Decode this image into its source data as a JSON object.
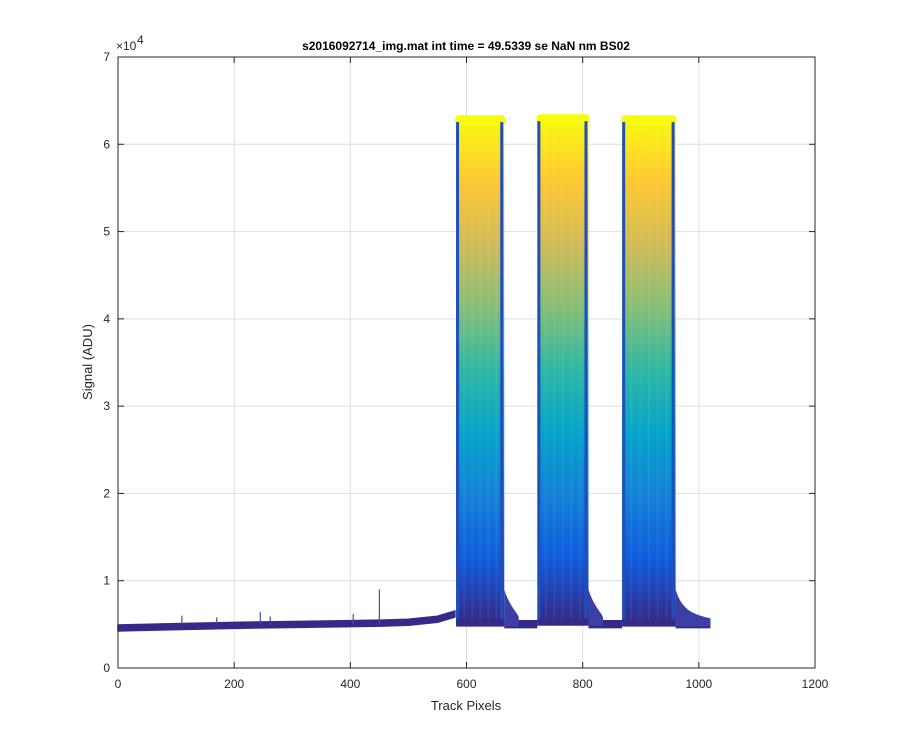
{
  "chart_data": {
    "type": "line",
    "title": "s2016092714_img.mat int time = 49.5339 se  NaN nm BS02",
    "xlabel": "Track Pixels",
    "ylabel": "Signal (ADU)",
    "xlim": [
      0,
      1200
    ],
    "ylim": [
      0,
      70000
    ],
    "x_ticks": [
      "0",
      "200",
      "400",
      "600",
      "800",
      "1000",
      "1200"
    ],
    "x_tick_values": [
      0,
      200,
      400,
      600,
      800,
      1000,
      1200
    ],
    "y_ticks": [
      "0",
      "1",
      "2",
      "3",
      "4",
      "5",
      "6",
      "7"
    ],
    "y_tick_values": [
      0,
      10000,
      20000,
      30000,
      40000,
      50000,
      60000,
      70000
    ],
    "y_exponent_base": "×10",
    "y_exponent_power": "4",
    "grid": true,
    "colormap": [
      "#352a87",
      "#0f5cdd",
      "#1481d6",
      "#06a4ca",
      "#2eb7a4",
      "#87bf77",
      "#d1bb59",
      "#fec832",
      "#f9fb0e"
    ],
    "baseline": {
      "x": [
        0,
        100,
        200,
        300,
        400,
        450,
        500,
        550,
        580
      ],
      "y": [
        4700,
        4850,
        5000,
        5100,
        5200,
        5250,
        5350,
        5700,
        6300
      ]
    },
    "baseline_tail": {
      "x": [
        960,
        1000,
        1020
      ],
      "y": [
        5400,
        5000,
        4700
      ]
    },
    "noise_spikes": [
      {
        "x": 110,
        "y": 6000
      },
      {
        "x": 170,
        "y": 5800
      },
      {
        "x": 245,
        "y": 6400
      },
      {
        "x": 262,
        "y": 5900
      },
      {
        "x": 405,
        "y": 6200
      },
      {
        "x": 450,
        "y": 9000
      }
    ],
    "plateaus": [
      {
        "x_start": 582,
        "x_end": 665,
        "peak": 63000,
        "floor": 5200,
        "tail_end": 690
      },
      {
        "x_start": 722,
        "x_end": 810,
        "peak": 63100,
        "floor": 5300,
        "tail_end": 835
      },
      {
        "x_start": 868,
        "x_end": 960,
        "peak": 63000,
        "floor": 5200,
        "tail_end": 1020
      }
    ]
  }
}
